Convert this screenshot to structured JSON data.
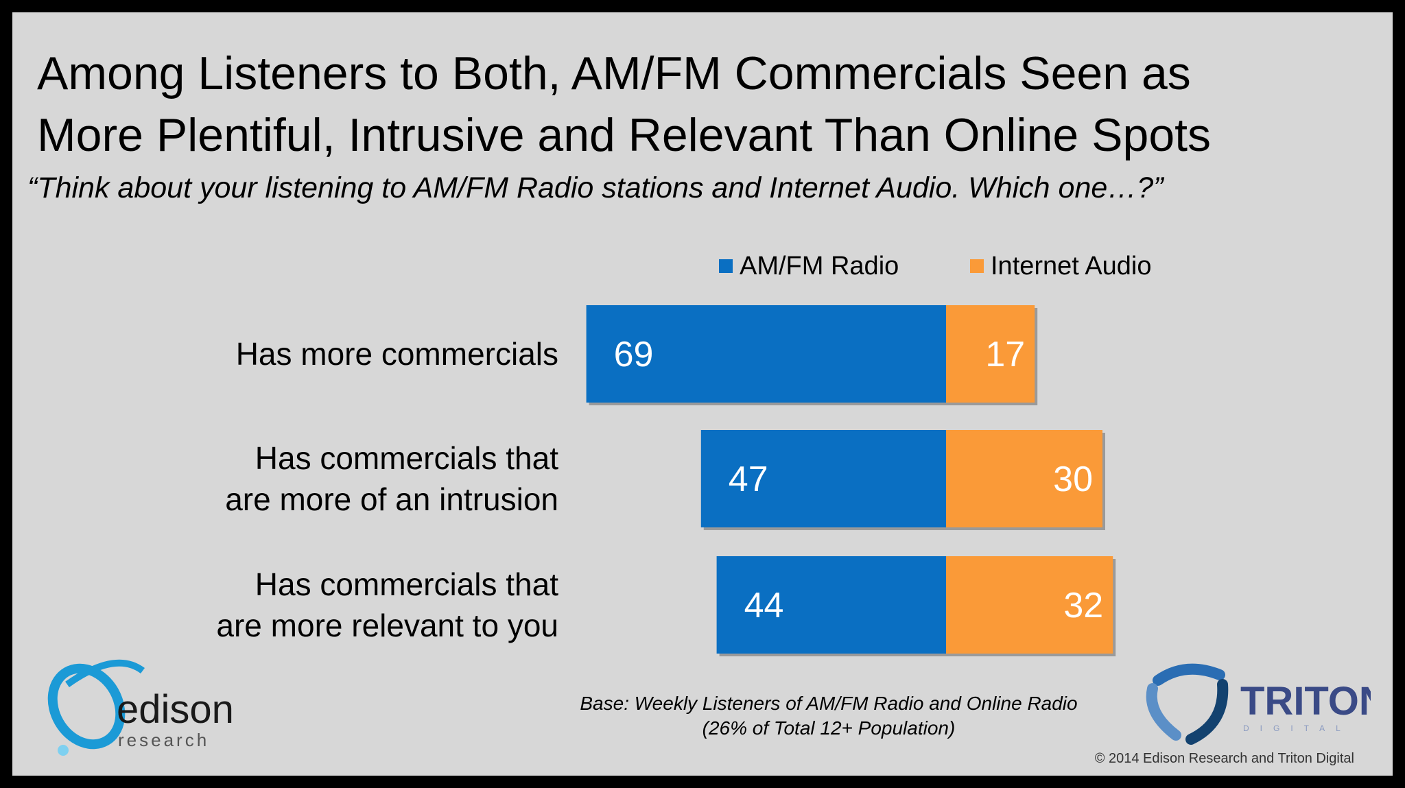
{
  "title_line1": "Among Listeners to Both, AM/FM Commercials Seen as",
  "title_line2": "More Plentiful, Intrusive and Relevant Than Online Spots",
  "subtitle": "“Think about your listening to AM/FM Radio stations and Internet Audio.  Which one…?”",
  "base_note_line1": "Base: Weekly Listeners of AM/FM Radio and Online Radio",
  "base_note_line2": "(26% of Total 12+ Population)",
  "copyright": "© 2014 Edison Research and Triton Digital",
  "logos": {
    "edison_name": "edison",
    "edison_sub": "research",
    "triton_name": "TRITON",
    "triton_sub": "DIGITAL"
  },
  "colors": {
    "amfm": "#0a6fc2",
    "internet": "#fa9a38",
    "background": "#d7d7d7"
  },
  "chart_data": {
    "type": "bar",
    "orientation": "horizontal-diverging",
    "categories": [
      [
        "Has more commercials"
      ],
      [
        "Has commercials that",
        "are more of an intrusion"
      ],
      [
        "Has commercials that",
        "are more relevant to you"
      ]
    ],
    "series": [
      {
        "name": "AM/FM Radio",
        "values": [
          69,
          47,
          44
        ]
      },
      {
        "name": "Internet Audio",
        "values": [
          17,
          30,
          32
        ]
      }
    ],
    "legend_position": "top",
    "grid": false
  }
}
